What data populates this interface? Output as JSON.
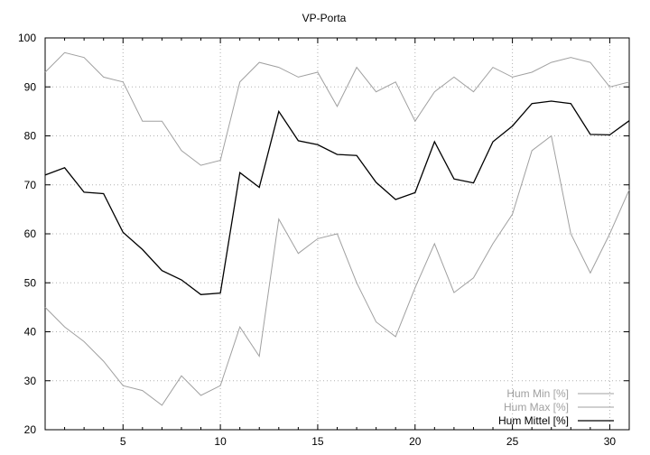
{
  "chart_data": {
    "type": "line",
    "title": "VP-Porta",
    "xlabel": "",
    "ylabel": "",
    "xlim": [
      1,
      31
    ],
    "ylim": [
      20,
      100
    ],
    "x_ticks": [
      5,
      10,
      15,
      20,
      25,
      30
    ],
    "y_ticks": [
      20,
      30,
      40,
      50,
      60,
      70,
      80,
      90,
      100
    ],
    "grid": true,
    "legend_position": "bottom-right",
    "x": [
      1,
      2,
      3,
      4,
      5,
      6,
      7,
      8,
      9,
      10,
      11,
      12,
      13,
      14,
      15,
      16,
      17,
      18,
      19,
      20,
      21,
      22,
      23,
      24,
      25,
      26,
      27,
      28,
      29,
      30,
      31
    ],
    "series": [
      {
        "name": "Hum Min [%]",
        "color": "#a0a0a0",
        "values": [
          45,
          41,
          38,
          34,
          29,
          28,
          25,
          31,
          27,
          29,
          41,
          35,
          63,
          56,
          59,
          60,
          50,
          42,
          39,
          49,
          58,
          48,
          51,
          58,
          64,
          77,
          80,
          60,
          52,
          60,
          69
        ]
      },
      {
        "name": "Hum Max [%]",
        "color": "#a0a0a0",
        "values": [
          93,
          97,
          96,
          92,
          91,
          83,
          83,
          77,
          74,
          75,
          91,
          95,
          94,
          92,
          93,
          86,
          94,
          89,
          91,
          83,
          89,
          92,
          89,
          94,
          92,
          93,
          95,
          96,
          95,
          90,
          91
        ]
      },
      {
        "name": "Hum Mittel [%]",
        "color": "#000000",
        "values": [
          72,
          73.5,
          68.5,
          68.2,
          60.3,
          56.8,
          52.5,
          50.6,
          47.6,
          47.9,
          72.5,
          69.5,
          85,
          79,
          78.2,
          76.2,
          76,
          70.5,
          67,
          68.4,
          78.8,
          71.2,
          70.4,
          78.8,
          82,
          86.6,
          87.1,
          86.6,
          80.3,
          80.2,
          83.1
        ]
      }
    ]
  }
}
